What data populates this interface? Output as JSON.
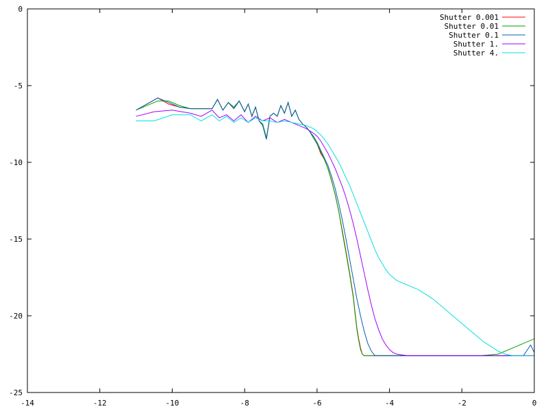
{
  "chart_data": {
    "type": "line",
    "title": "",
    "xlabel": "",
    "ylabel": "",
    "xlim": [
      -14,
      0
    ],
    "ylim": [
      -25,
      0
    ],
    "x_ticks": [
      -14,
      -12,
      -10,
      -8,
      -6,
      -4,
      -2,
      0
    ],
    "y_ticks": [
      0,
      -5,
      -10,
      -15,
      -20,
      -25
    ],
    "x_tick_labels": [
      "-14",
      "-12",
      "-10",
      "-8",
      "-6",
      "-4",
      "-2",
      "0"
    ],
    "y_tick_labels": [
      "0",
      "-5",
      "-10",
      "-15",
      "-20",
      "-25"
    ],
    "grid": false,
    "legend_position": "top-right",
    "series": [
      {
        "name": "Shutter 0.001",
        "color": "#ff0000",
        "x": [
          -11.0,
          -10.7,
          -10.4,
          -10.1,
          -9.8,
          -9.5,
          -9.2,
          -8.9,
          -8.75,
          -8.6,
          -8.45,
          -8.3,
          -8.15,
          -8.0,
          -7.9,
          -7.8,
          -7.7,
          -7.6,
          -7.5,
          -7.4,
          -7.3,
          -7.2,
          -7.1,
          -7.0,
          -6.9,
          -6.8,
          -6.7,
          -6.6,
          -6.5,
          -6.4,
          -6.3,
          -6.2,
          -6.1,
          -6.0,
          -5.9,
          -5.8,
          -5.7,
          -5.6,
          -5.5,
          -5.4,
          -5.3,
          -5.2,
          -5.1,
          -5.0,
          -4.95,
          -4.9,
          -4.85,
          -4.8,
          -4.75,
          -4.7,
          -4.6,
          -4.5,
          -4.4,
          -4.3,
          -4.2,
          -4.0,
          -3.0,
          -2.0,
          -1.0,
          0.0
        ],
        "y": [
          -6.6,
          -6.2,
          -5.8,
          -6.2,
          -6.4,
          -6.5,
          -6.5,
          -6.5,
          -5.9,
          -6.6,
          -6.1,
          -6.5,
          -6.0,
          -6.7,
          -6.2,
          -7.0,
          -6.4,
          -7.3,
          -7.6,
          -8.5,
          -7.0,
          -6.8,
          -7.0,
          -6.3,
          -6.8,
          -6.1,
          -7.0,
          -6.6,
          -7.2,
          -7.5,
          -7.7,
          -8.0,
          -8.4,
          -8.8,
          -9.4,
          -9.8,
          -10.4,
          -11.2,
          -12.1,
          -13.2,
          -14.5,
          -15.8,
          -17.2,
          -18.7,
          -19.8,
          -20.8,
          -21.5,
          -22.1,
          -22.5,
          -22.6,
          -22.6,
          -22.6,
          -22.6,
          -22.6,
          -22.6,
          -22.6,
          -22.6,
          -22.6,
          -22.6,
          -22.6
        ]
      },
      {
        "name": "Shutter 0.01",
        "color": "#00a000",
        "x": [
          -11.0,
          -10.7,
          -10.4,
          -10.1,
          -9.8,
          -9.5,
          -9.2,
          -8.9,
          -8.75,
          -8.6,
          -8.45,
          -8.3,
          -8.15,
          -8.0,
          -7.9,
          -7.8,
          -7.7,
          -7.6,
          -7.5,
          -7.4,
          -7.3,
          -7.2,
          -7.1,
          -7.0,
          -6.9,
          -6.8,
          -6.7,
          -6.6,
          -6.5,
          -6.4,
          -6.3,
          -6.2,
          -6.1,
          -6.0,
          -5.9,
          -5.8,
          -5.7,
          -5.6,
          -5.5,
          -5.4,
          -5.3,
          -5.2,
          -5.1,
          -5.0,
          -4.95,
          -4.9,
          -4.85,
          -4.8,
          -4.75,
          -4.7,
          -4.6,
          -4.5,
          -4.0,
          -3.0,
          -2.0,
          -1.5,
          -1.0,
          -0.5,
          0.0
        ],
        "y": [
          -6.6,
          -6.3,
          -6.0,
          -6.0,
          -6.3,
          -6.5,
          -6.5,
          -6.5,
          -5.9,
          -6.6,
          -6.1,
          -6.4,
          -6.0,
          -6.7,
          -6.2,
          -7.0,
          -6.4,
          -7.3,
          -7.5,
          -8.4,
          -7.0,
          -6.8,
          -7.0,
          -6.3,
          -6.8,
          -6.1,
          -7.0,
          -6.6,
          -7.2,
          -7.5,
          -7.7,
          -8.0,
          -8.4,
          -8.8,
          -9.3,
          -9.8,
          -10.4,
          -11.2,
          -12.1,
          -13.2,
          -14.6,
          -15.9,
          -17.3,
          -18.8,
          -19.9,
          -20.9,
          -21.6,
          -22.2,
          -22.5,
          -22.6,
          -22.6,
          -22.6,
          -22.6,
          -22.6,
          -22.6,
          -22.6,
          -22.5,
          -22.0,
          -21.5
        ]
      },
      {
        "name": "Shutter 0.1",
        "color": "#0060b0",
        "x": [
          -11.0,
          -10.7,
          -10.4,
          -10.1,
          -9.8,
          -9.5,
          -9.2,
          -8.9,
          -8.75,
          -8.6,
          -8.45,
          -8.3,
          -8.15,
          -8.0,
          -7.9,
          -7.8,
          -7.7,
          -7.6,
          -7.5,
          -7.4,
          -7.3,
          -7.2,
          -7.1,
          -7.0,
          -6.9,
          -6.8,
          -6.7,
          -6.6,
          -6.5,
          -6.4,
          -6.3,
          -6.2,
          -6.1,
          -6.0,
          -5.9,
          -5.8,
          -5.7,
          -5.6,
          -5.5,
          -5.4,
          -5.3,
          -5.2,
          -5.1,
          -5.0,
          -4.9,
          -4.8,
          -4.7,
          -4.6,
          -4.5,
          -4.4,
          -4.3,
          -4.2,
          -4.0,
          -3.0,
          -2.0,
          -1.0,
          -0.3,
          -0.1,
          0.0
        ],
        "y": [
          -6.6,
          -6.2,
          -5.8,
          -6.1,
          -6.4,
          -6.5,
          -6.5,
          -6.5,
          -5.9,
          -6.6,
          -6.1,
          -6.5,
          -6.0,
          -6.7,
          -6.2,
          -7.0,
          -6.4,
          -7.3,
          -7.6,
          -8.5,
          -7.0,
          -6.8,
          -7.0,
          -6.3,
          -6.8,
          -6.1,
          -7.0,
          -6.6,
          -7.2,
          -7.5,
          -7.7,
          -8.0,
          -8.3,
          -8.7,
          -9.2,
          -9.7,
          -10.2,
          -10.9,
          -11.7,
          -12.7,
          -13.8,
          -15.0,
          -16.3,
          -17.6,
          -18.9,
          -20.0,
          -21.0,
          -21.8,
          -22.3,
          -22.6,
          -22.6,
          -22.6,
          -22.6,
          -22.6,
          -22.6,
          -22.6,
          -22.6,
          -21.9,
          -22.4
        ]
      },
      {
        "name": "Shutter 1.",
        "color": "#a000ff",
        "x": [
          -11.0,
          -10.5,
          -10.0,
          -9.5,
          -9.2,
          -8.9,
          -8.7,
          -8.5,
          -8.3,
          -8.1,
          -7.9,
          -7.7,
          -7.5,
          -7.3,
          -7.1,
          -6.9,
          -6.7,
          -6.5,
          -6.3,
          -6.1,
          -6.0,
          -5.9,
          -5.8,
          -5.7,
          -5.6,
          -5.5,
          -5.4,
          -5.3,
          -5.2,
          -5.1,
          -5.0,
          -4.9,
          -4.8,
          -4.7,
          -4.6,
          -4.5,
          -4.4,
          -4.3,
          -4.2,
          -4.1,
          -4.0,
          -3.9,
          -3.8,
          -3.5,
          -3.0,
          -2.0,
          -1.0,
          0.0
        ],
        "y": [
          -7.0,
          -6.7,
          -6.6,
          -6.8,
          -7.0,
          -6.6,
          -7.1,
          -6.9,
          -7.3,
          -6.9,
          -7.4,
          -7.0,
          -7.3,
          -7.1,
          -7.4,
          -7.2,
          -7.4,
          -7.6,
          -7.8,
          -8.1,
          -8.3,
          -8.6,
          -9.0,
          -9.4,
          -9.9,
          -10.4,
          -11.0,
          -11.6,
          -12.3,
          -13.1,
          -14.0,
          -15.0,
          -16.1,
          -17.2,
          -18.3,
          -19.3,
          -20.2,
          -20.9,
          -21.5,
          -21.9,
          -22.2,
          -22.4,
          -22.5,
          -22.6,
          -22.6,
          -22.6,
          -22.6,
          -22.6
        ]
      },
      {
        "name": "Shutter 4.",
        "color": "#00e0e0",
        "x": [
          -11.0,
          -10.5,
          -10.0,
          -9.5,
          -9.2,
          -8.9,
          -8.7,
          -8.5,
          -8.3,
          -8.1,
          -7.9,
          -7.7,
          -7.5,
          -7.3,
          -7.1,
          -6.9,
          -6.7,
          -6.5,
          -6.3,
          -6.1,
          -6.0,
          -5.9,
          -5.8,
          -5.7,
          -5.6,
          -5.5,
          -5.4,
          -5.3,
          -5.2,
          -5.1,
          -5.0,
          -4.9,
          -4.8,
          -4.7,
          -4.6,
          -4.5,
          -4.4,
          -4.3,
          -4.2,
          -4.1,
          -4.0,
          -3.8,
          -3.6,
          -3.4,
          -3.2,
          -3.0,
          -2.8,
          -2.6,
          -2.4,
          -2.2,
          -2.0,
          -1.8,
          -1.6,
          -1.4,
          -1.2,
          -1.0,
          -0.8,
          -0.6,
          -0.4,
          -0.2,
          0.0
        ],
        "y": [
          -7.3,
          -7.3,
          -6.9,
          -6.9,
          -7.3,
          -6.9,
          -7.3,
          -7.0,
          -7.4,
          -7.1,
          -7.4,
          -7.1,
          -7.3,
          -7.3,
          -7.4,
          -7.3,
          -7.4,
          -7.5,
          -7.6,
          -7.8,
          -8.0,
          -8.2,
          -8.5,
          -8.8,
          -9.2,
          -9.6,
          -10.0,
          -10.5,
          -11.0,
          -11.5,
          -12.1,
          -12.7,
          -13.3,
          -13.9,
          -14.5,
          -15.1,
          -15.7,
          -16.2,
          -16.6,
          -17.0,
          -17.3,
          -17.7,
          -17.9,
          -18.1,
          -18.3,
          -18.6,
          -18.9,
          -19.3,
          -19.7,
          -20.1,
          -20.5,
          -20.9,
          -21.3,
          -21.7,
          -22.0,
          -22.3,
          -22.5,
          -22.6,
          -22.6,
          -22.6,
          -22.6
        ]
      }
    ]
  }
}
